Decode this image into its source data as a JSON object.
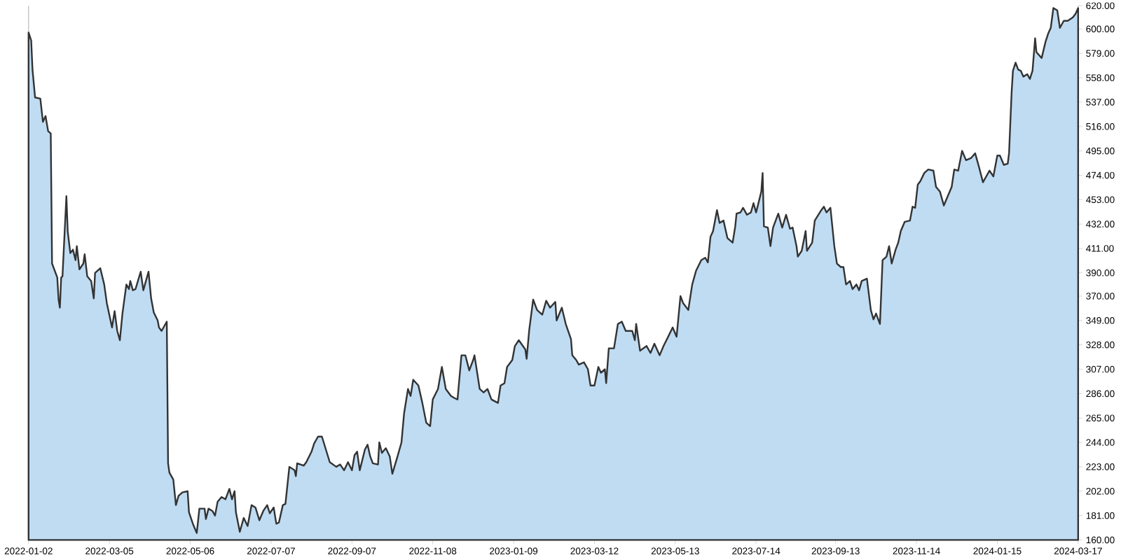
{
  "chart_data": {
    "type": "area",
    "xlim": [
      "2022-01-02",
      "2024-03-17"
    ],
    "xticks": [
      "2022-01-02",
      "2022-03-05",
      "2022-05-06",
      "2022-07-07",
      "2022-09-07",
      "2022-11-08",
      "2023-01-09",
      "2023-03-12",
      "2023-05-13",
      "2023-07-14",
      "2023-09-13",
      "2023-11-14",
      "2024-01-15",
      "2024-03-17"
    ],
    "ylim": [
      160,
      620
    ],
    "yticks": [
      {
        "value": 160,
        "label": "160.00"
      },
      {
        "value": 181,
        "label": "181.00"
      },
      {
        "value": 202,
        "label": "202.00"
      },
      {
        "value": 223,
        "label": "223.00"
      },
      {
        "value": 244,
        "label": "244.00"
      },
      {
        "value": 265,
        "label": "265.00"
      },
      {
        "value": 286,
        "label": "286.00"
      },
      {
        "value": 307,
        "label": "307.00"
      },
      {
        "value": 328,
        "label": "328.00"
      },
      {
        "value": 349,
        "label": "349.00"
      },
      {
        "value": 370,
        "label": "370.00"
      },
      {
        "value": 390,
        "label": "390.00"
      },
      {
        "value": 411,
        "label": "411.00"
      },
      {
        "value": 432,
        "label": "432.00"
      },
      {
        "value": 453,
        "label": "453.00"
      },
      {
        "value": 474,
        "label": "474.00"
      },
      {
        "value": 495,
        "label": "495.00"
      },
      {
        "value": 516,
        "label": "516.00"
      },
      {
        "value": 537,
        "label": "537.00"
      },
      {
        "value": 558,
        "label": "558.00"
      },
      {
        "value": 579,
        "label": "579.00"
      },
      {
        "value": 600,
        "label": "600.00"
      },
      {
        "value": 620,
        "label": "620.00"
      }
    ],
    "grid": false,
    "series": [
      {
        "color": "#bfdcf3",
        "x": [
          "2022-01-02",
          "2022-01-04",
          "2022-01-05",
          "2022-01-07",
          "2022-01-11",
          "2022-01-13",
          "2022-01-15",
          "2022-01-17",
          "2022-01-19",
          "2022-01-20",
          "2022-01-24",
          "2022-01-25",
          "2022-01-26",
          "2022-01-27",
          "2022-01-28",
          "2022-01-31",
          "2022-02-01",
          "2022-02-03",
          "2022-02-05",
          "2022-02-07",
          "2022-02-08",
          "2022-02-10",
          "2022-02-13",
          "2022-02-14",
          "2022-02-16",
          "2022-02-19",
          "2022-02-21",
          "2022-02-22",
          "2022-02-26",
          "2022-03-01",
          "2022-03-03",
          "2022-03-07",
          "2022-03-09",
          "2022-03-11",
          "2022-03-13",
          "2022-03-15",
          "2022-03-18",
          "2022-03-20",
          "2022-03-21",
          "2022-03-23",
          "2022-03-25",
          "2022-03-29",
          "2022-03-31",
          "2022-04-04",
          "2022-04-06",
          "2022-04-08",
          "2022-04-11",
          "2022-04-12",
          "2022-04-14",
          "2022-04-18",
          "2022-04-19",
          "2022-04-20",
          "2022-04-23",
          "2022-04-25",
          "2022-04-27",
          "2022-04-30",
          "2022-05-04",
          "2022-05-05",
          "2022-05-08",
          "2022-05-11",
          "2022-05-13",
          "2022-05-17",
          "2022-05-18",
          "2022-05-20",
          "2022-05-23",
          "2022-05-25",
          "2022-05-27",
          "2022-05-30",
          "2022-06-02",
          "2022-06-05",
          "2022-06-07",
          "2022-06-09",
          "2022-06-10",
          "2022-06-13",
          "2022-06-16",
          "2022-06-19",
          "2022-06-22",
          "2022-06-25",
          "2022-06-28",
          "2022-07-01",
          "2022-07-04",
          "2022-07-06",
          "2022-07-09",
          "2022-07-11",
          "2022-07-13",
          "2022-07-16",
          "2022-07-18",
          "2022-07-21",
          "2022-07-25",
          "2022-07-26",
          "2022-07-27",
          "2022-08-01",
          "2022-08-03",
          "2022-08-07",
          "2022-08-09",
          "2022-08-12",
          "2022-08-15",
          "2022-08-18",
          "2022-08-21",
          "2022-08-26",
          "2022-08-29",
          "2022-09-01",
          "2022-09-04",
          "2022-09-07",
          "2022-09-09",
          "2022-09-11",
          "2022-09-13",
          "2022-09-17",
          "2022-09-19",
          "2022-09-21",
          "2022-09-23",
          "2022-09-27",
          "2022-09-28",
          "2022-09-30",
          "2022-10-03",
          "2022-10-06",
          "2022-10-08",
          "2022-10-12",
          "2022-10-15",
          "2022-10-17",
          "2022-10-20",
          "2022-10-22",
          "2022-10-24",
          "2022-10-28",
          "2022-10-31",
          "2022-11-03",
          "2022-11-06",
          "2022-11-08",
          "2022-11-12",
          "2022-11-15",
          "2022-11-18",
          "2022-11-22",
          "2022-11-25",
          "2022-11-27",
          "2022-11-30",
          "2022-12-03",
          "2022-12-06",
          "2022-12-09",
          "2022-12-10",
          "2022-12-14",
          "2022-12-17",
          "2022-12-20",
          "2022-12-23",
          "2022-12-28",
          "2022-12-30",
          "2023-01-02",
          "2023-01-04",
          "2023-01-08",
          "2023-01-10",
          "2023-01-13",
          "2023-01-18",
          "2023-01-19",
          "2023-01-21",
          "2023-01-24",
          "2023-01-27",
          "2023-01-31",
          "2023-02-03",
          "2023-02-06",
          "2023-02-10",
          "2023-02-11",
          "2023-02-15",
          "2023-02-18",
          "2023-02-22",
          "2023-02-23",
          "2023-02-26",
          "2023-02-28",
          "2023-03-04",
          "2023-03-07",
          "2023-03-09",
          "2023-03-12",
          "2023-03-15",
          "2023-03-17",
          "2023-03-20",
          "2023-03-21",
          "2023-03-23",
          "2023-03-27",
          "2023-03-30",
          "2023-04-02",
          "2023-04-05",
          "2023-04-10",
          "2023-04-12",
          "2023-04-13",
          "2023-04-16",
          "2023-04-21",
          "2023-04-24",
          "2023-04-27",
          "2023-05-01",
          "2023-05-04",
          "2023-05-08",
          "2023-05-11",
          "2023-05-14",
          "2023-05-17",
          "2023-05-19",
          "2023-05-23",
          "2023-05-26",
          "2023-05-29",
          "2023-06-02",
          "2023-06-05",
          "2023-06-07",
          "2023-06-09",
          "2023-06-11",
          "2023-06-14",
          "2023-06-16",
          "2023-06-19",
          "2023-06-22",
          "2023-06-26",
          "2023-06-28",
          "2023-06-29",
          "2023-07-02",
          "2023-07-04",
          "2023-07-07",
          "2023-07-10",
          "2023-07-12",
          "2023-07-14",
          "2023-07-18",
          "2023-07-19",
          "2023-07-20",
          "2023-07-23",
          "2023-07-25",
          "2023-07-27",
          "2023-07-31",
          "2023-08-03",
          "2023-08-06",
          "2023-08-09",
          "2023-08-11",
          "2023-08-14",
          "2023-08-15",
          "2023-08-18",
          "2023-08-21",
          "2023-08-22",
          "2023-08-26",
          "2023-08-28",
          "2023-09-02",
          "2023-09-04",
          "2023-09-06",
          "2023-09-09",
          "2023-09-12",
          "2023-09-14",
          "2023-09-17",
          "2023-09-19",
          "2023-09-21",
          "2023-09-24",
          "2023-09-26",
          "2023-09-29",
          "2023-10-01",
          "2023-10-03",
          "2023-10-07",
          "2023-10-10",
          "2023-10-12",
          "2023-10-14",
          "2023-10-17",
          "2023-10-19",
          "2023-10-22",
          "2023-10-24",
          "2023-10-26",
          "2023-10-29",
          "2023-10-31",
          "2023-11-02",
          "2023-11-05",
          "2023-11-09",
          "2023-11-11",
          "2023-11-13",
          "2023-11-15",
          "2023-11-17",
          "2023-11-20",
          "2023-11-23",
          "2023-11-27",
          "2023-11-29",
          "2023-12-02",
          "2023-12-05",
          "2023-12-08",
          "2023-12-11",
          "2023-12-13",
          "2023-12-16",
          "2023-12-19",
          "2023-12-22",
          "2023-12-26",
          "2023-12-29",
          "2024-01-01",
          "2024-01-04",
          "2024-01-06",
          "2024-01-09",
          "2024-01-12",
          "2024-01-15",
          "2024-01-17",
          "2024-01-20",
          "2024-01-23",
          "2024-01-24",
          "2024-01-26",
          "2024-01-27",
          "2024-01-29",
          "2024-01-31",
          "2024-02-02",
          "2024-02-04",
          "2024-02-07",
          "2024-02-09",
          "2024-02-11",
          "2024-02-13",
          "2024-02-14",
          "2024-02-18",
          "2024-02-21",
          "2024-02-23",
          "2024-02-25",
          "2024-02-27",
          "2024-03-01",
          "2024-03-03",
          "2024-03-06",
          "2024-03-09",
          "2024-03-13",
          "2024-03-15",
          "2024-03-17"
        ],
        "values": [
          597,
          590,
          565,
          541,
          540,
          520,
          525,
          512,
          510,
          398,
          386,
          367,
          360,
          386,
          387,
          456,
          426,
          407,
          410,
          401,
          413,
          393,
          398,
          406,
          387,
          383,
          368,
          390,
          394,
          380,
          364,
          343,
          357,
          340,
          332,
          355,
          380,
          376,
          383,
          375,
          376,
          391,
          375,
          391,
          368,
          356,
          349,
          343,
          340,
          348,
          226,
          218,
          212,
          190,
          198,
          201,
          202,
          184,
          174,
          166,
          187,
          187,
          178,
          187,
          185,
          181,
          193,
          197,
          195,
          204,
          195,
          202,
          184,
          167,
          179,
          172,
          190,
          188,
          177,
          185,
          190,
          183,
          188,
          174,
          175,
          190,
          191,
          223,
          220,
          215,
          226,
          224,
          227,
          236,
          243,
          249,
          249,
          238,
          227,
          223,
          225,
          220,
          227,
          220,
          233,
          236,
          220,
          238,
          242,
          232,
          226,
          225,
          244,
          235,
          239,
          232,
          217,
          232,
          244,
          269,
          290,
          284,
          298,
          293,
          278,
          261,
          258,
          281,
          290,
          309,
          290,
          284,
          282,
          281,
          319,
          319,
          306,
          315,
          319,
          290,
          287,
          290,
          281,
          278,
          293,
          295,
          309,
          315,
          327,
          332,
          324,
          316,
          341,
          367,
          358,
          354,
          366,
          360,
          365,
          349,
          360,
          346,
          333,
          319,
          315,
          311,
          313,
          307,
          293,
          293,
          309,
          304,
          307,
          295,
          325,
          325,
          346,
          348,
          340,
          340,
          332,
          346,
          323,
          327,
          321,
          329,
          319,
          327,
          336,
          343,
          335,
          370,
          364,
          358,
          380,
          392,
          401,
          403,
          399,
          421,
          426,
          444,
          433,
          435,
          420,
          416,
          430,
          441,
          442,
          446,
          440,
          442,
          450,
          442,
          460,
          476,
          430,
          429,
          413,
          429,
          441,
          429,
          440,
          428,
          429,
          413,
          404,
          409,
          426,
          409,
          416,
          435,
          444,
          447,
          442,
          446,
          413,
          398,
          395,
          395,
          380,
          383,
          376,
          380,
          375,
          383,
          385,
          358,
          350,
          355,
          346,
          401,
          404,
          413,
          398,
          410,
          416,
          426,
          434,
          435,
          447,
          446,
          466,
          469,
          476,
          479,
          478,
          464,
          460,
          448,
          456,
          464,
          479,
          478,
          495,
          487,
          489,
          493,
          481,
          468,
          472,
          478,
          473,
          491,
          491,
          483,
          484,
          493,
          546,
          564,
          571,
          565,
          564,
          559,
          561,
          557,
          564,
          592,
          580,
          575,
          589,
          596,
          601,
          618,
          616,
          601,
          607,
          607,
          610,
          613,
          618
        ]
      }
    ]
  }
}
